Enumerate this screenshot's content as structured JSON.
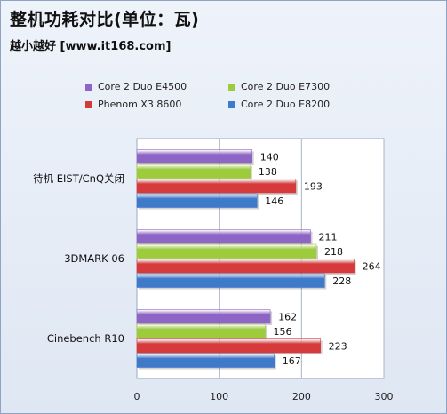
{
  "title": "整机功耗对比(单位：瓦)",
  "subtitle": "越小越好 [www.it168.com]",
  "chart_data": {
    "type": "bar",
    "orientation": "horizontal",
    "categories": [
      "待机 EIST/CnQ关闭",
      "3DMARK 06",
      "Cinebench R10"
    ],
    "series": [
      {
        "name": "Core 2 Duo E4500",
        "color": "#8e64c6",
        "values": [
          140,
          211,
          162
        ]
      },
      {
        "name": "Core 2 Duo E7300",
        "color": "#9ccc3c",
        "values": [
          138,
          218,
          156
        ]
      },
      {
        "name": "Phenom  X3 8600",
        "color": "#d63a3a",
        "values": [
          193,
          264,
          223
        ]
      },
      {
        "name": "Core 2 Duo E8200",
        "color": "#3f79c9",
        "values": [
          146,
          228,
          167
        ]
      }
    ],
    "xlim": [
      0,
      300
    ],
    "xticks": [
      0,
      100,
      200,
      300
    ],
    "grid": true,
    "legend_position": "top"
  }
}
